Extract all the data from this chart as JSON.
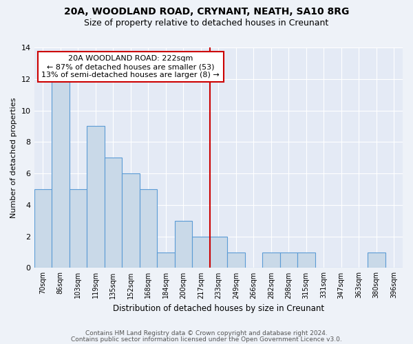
{
  "title1": "20A, WOODLAND ROAD, CRYNANT, NEATH, SA10 8RG",
  "title2": "Size of property relative to detached houses in Creunant",
  "xlabel": "Distribution of detached houses by size in Creunant",
  "ylabel": "Number of detached properties",
  "bar_labels": [
    "70sqm",
    "86sqm",
    "103sqm",
    "119sqm",
    "135sqm",
    "152sqm",
    "168sqm",
    "184sqm",
    "200sqm",
    "217sqm",
    "233sqm",
    "249sqm",
    "266sqm",
    "282sqm",
    "298sqm",
    "315sqm",
    "331sqm",
    "347sqm",
    "363sqm",
    "380sqm",
    "396sqm"
  ],
  "bar_values": [
    5,
    12,
    5,
    9,
    7,
    6,
    5,
    1,
    3,
    2,
    2,
    1,
    0,
    1,
    1,
    1,
    0,
    0,
    0,
    1,
    0
  ],
  "bar_color": "#c9d9e8",
  "bar_edgecolor": "#5b9bd5",
  "vline_x_index": 9.5,
  "annotation_text": "20A WOODLAND ROAD: 222sqm\n← 87% of detached houses are smaller (53)\n13% of semi-detached houses are larger (8) →",
  "annotation_box_color": "#ffffff",
  "annotation_box_edgecolor": "#cc0000",
  "vline_color": "#cc0000",
  "footer1": "Contains HM Land Registry data © Crown copyright and database right 2024.",
  "footer2": "Contains public sector information licensed under the Open Government Licence v3.0.",
  "ylim": [
    0,
    14
  ],
  "yticks": [
    0,
    2,
    4,
    6,
    8,
    10,
    12,
    14
  ],
  "background_color": "#eef2f8",
  "plot_bg_color": "#e4eaf5",
  "grid_color": "#ffffff",
  "title1_fontsize": 10,
  "title2_fontsize": 9,
  "xlabel_fontsize": 8.5,
  "ylabel_fontsize": 8,
  "tick_fontsize": 7,
  "annot_fontsize": 8,
  "footer_fontsize": 6.5
}
